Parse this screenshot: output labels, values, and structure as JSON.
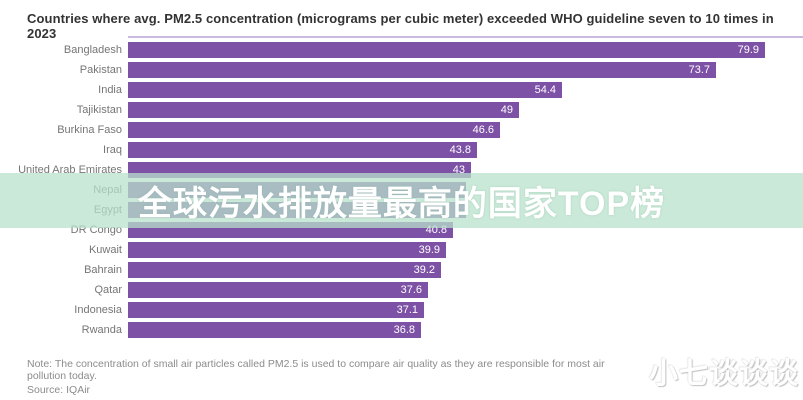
{
  "title": "Countries where avg. PM2.5 concentration (micrograms per cubic meter) exceeded WHO guideline seven to 10 times in 2023",
  "note": "Note: The concentration of small air particles called PM2.5 is used to compare air quality as they are responsible for most air pollution today.",
  "source": "Source: IQAir",
  "watermark": "小七谈谈谈",
  "overlay_banner": {
    "text": "全球污水排放量最高的国家TOP榜",
    "background_hex_over_white": "#CDEADB",
    "text_color": "#FFFFFF"
  },
  "colors": {
    "bar": "#7D51A6",
    "top_axis_line": "#CBBADF",
    "category_label": "#757575",
    "value_label": "#FFFFFF",
    "title": "#333333",
    "note": "#8C8C8C"
  },
  "chart_data": {
    "type": "bar",
    "orientation": "horizontal",
    "title": "Countries where avg. PM2.5 concentration (micrograms per cubic meter) exceeded WHO guideline seven to 10 times in 2023",
    "xlabel": "",
    "ylabel": "",
    "xlim": [
      0,
      84.7
    ],
    "grid": false,
    "legend": false,
    "bar_color": "#7D51A6",
    "categories": [
      "Bangladesh",
      "Pakistan",
      "India",
      "Tajikistan",
      "Burkina Faso",
      "Iraq",
      "United Arab Emirates",
      "Nepal",
      "Egypt",
      "DR Congo",
      "Kuwait",
      "Bahrain",
      "Qatar",
      "Indonesia",
      "Rwanda"
    ],
    "values": [
      79.9,
      73.7,
      54.4,
      49,
      46.6,
      43.8,
      43,
      42.4,
      42.4,
      40.8,
      39.9,
      39.2,
      37.6,
      37.1,
      36.8
    ],
    "value_labels": [
      "79.9",
      "73.7",
      "54.4",
      "49",
      "46.6",
      "43.8",
      "43",
      "",
      "",
      "40.8",
      "39.9",
      "39.2",
      "37.6",
      "37.1",
      "36.8"
    ],
    "occluded_value_labels": [
      "Nepal",
      "Egypt"
    ]
  }
}
